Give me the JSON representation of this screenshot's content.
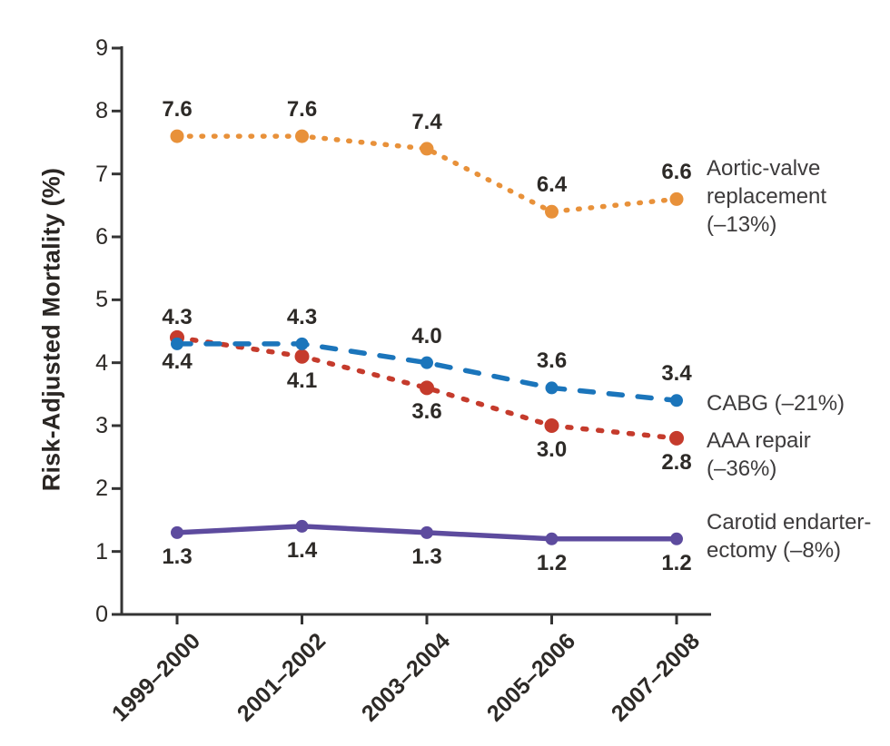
{
  "chart_data": {
    "type": "line",
    "title": "",
    "xlabel": "",
    "ylabel": "Risk-Adjusted Mortality (%)",
    "ylim": [
      0,
      9
    ],
    "yticks": [
      "0",
      "1",
      "2",
      "3",
      "4",
      "5",
      "6",
      "7",
      "8",
      "9"
    ],
    "grid": false,
    "legend_position": "right of line ends",
    "categories": [
      "1999–2000",
      "2001–2002",
      "2003–2004",
      "2005–2006",
      "2007–2008"
    ],
    "series": [
      {
        "name": "Aortic-valve replacement",
        "change": "–13%",
        "legend_lines": [
          "Aortic-valve",
          "replacement",
          "(–13%)"
        ],
        "color": "#E8913A",
        "line_style": "dotted",
        "marker": "circle",
        "marker_radius": 7.5,
        "values": [
          7.6,
          7.6,
          7.4,
          6.4,
          6.6
        ],
        "point_labels": [
          "7.6",
          "7.6",
          "7.4",
          "6.4",
          "6.6"
        ],
        "label_side": "above",
        "legend_dy": -3
      },
      {
        "name": "AAA repair",
        "change": "–36%",
        "legend_lines": [
          "AAA repair",
          "(–36%)"
        ],
        "color": "#C53B2C",
        "line_style": "short-dash",
        "marker": "circle",
        "marker_radius": 8,
        "values": [
          4.4,
          4.1,
          3.6,
          3.0,
          2.8
        ],
        "point_labels": [
          "4.4",
          "4.1",
          "3.6",
          "3.0",
          "2.8"
        ],
        "label_side": "below",
        "legend_dy": 18
      },
      {
        "name": "CABG",
        "change": "–21%",
        "legend_lines": [
          "CABG (–21%)"
        ],
        "color": "#1B75BB",
        "line_style": "long-dash",
        "marker": "circle",
        "marker_radius": 7,
        "values": [
          4.3,
          4.3,
          4.0,
          3.6,
          3.4
        ],
        "point_labels": [
          "4.3",
          "4.3",
          "4.0",
          "3.6",
          "3.4"
        ],
        "label_side": "above",
        "legend_dy": 3
      },
      {
        "name": "Carotid endarterectomy",
        "change": "–8%",
        "legend_lines": [
          "Carotid endarter-",
          "ectomy (–8%)"
        ],
        "color": "#5D4B9E",
        "line_style": "solid",
        "marker": "circle",
        "marker_radius": 7,
        "values": [
          1.3,
          1.4,
          1.3,
          1.2,
          1.2
        ],
        "point_labels": [
          "1.3",
          "1.4",
          "1.3",
          "1.2",
          "1.2"
        ],
        "label_side": "below",
        "legend_dy": -3
      }
    ],
    "axis_color": "#343434",
    "text_color": "#2d2a27",
    "legend_text_color": "#3d3b3c"
  }
}
